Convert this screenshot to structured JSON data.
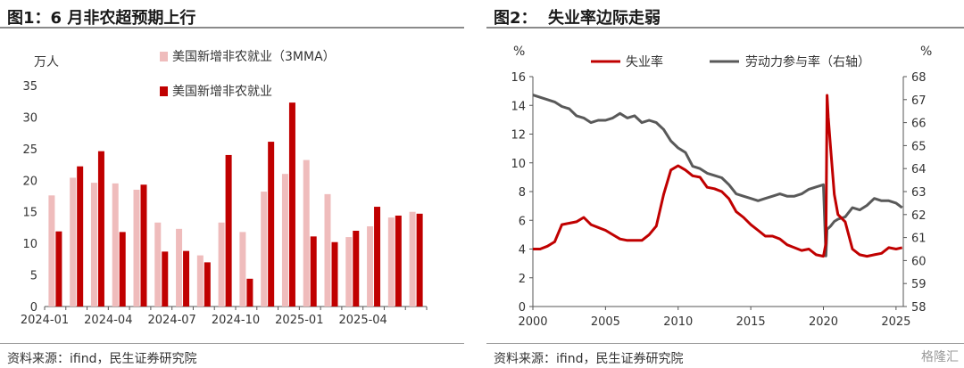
{
  "left": {
    "title": "图1：6 月非农超预期上行",
    "source": "资料来源：ifind，民生证券研究院",
    "unit": "万人",
    "legend": [
      "美国新增非农就业（3MMA）",
      "美国新增非农就业"
    ],
    "colors": {
      "mma": "#efbcbc",
      "payrolls": "#c00000"
    }
  },
  "right": {
    "title": "图2：  失业率边际走弱",
    "source": "资料来源：ifind，民生证券研究院",
    "unit_left": "%",
    "unit_right": "%",
    "legend": [
      "失业率",
      "劳动力参与率（右轴）"
    ],
    "colors": {
      "unemployment": "#c00000",
      "participation": "#595959"
    }
  },
  "watermark": "格隆汇",
  "chart_data": [
    {
      "type": "bar",
      "title": "图1：6 月非农超预期上行",
      "ylabel": "万人",
      "ylim": [
        0,
        35
      ],
      "yticks": [
        0,
        5,
        10,
        15,
        20,
        25,
        30,
        35
      ],
      "categories": [
        "2024-01",
        "2024-02",
        "2024-03",
        "2024-04",
        "2024-05",
        "2024-06",
        "2024-07",
        "2024-08",
        "2024-09",
        "2024-10",
        "2024-11",
        "2024-12",
        "2025-01",
        "2025-02",
        "2025-03",
        "2025-04",
        "2025-05",
        "2025-06"
      ],
      "xticklabels": [
        "2024-01",
        "2024-04",
        "2024-07",
        "2024-10",
        "2025-01",
        "2025-04"
      ],
      "series": [
        {
          "name": "美国新增非农就业（3MMA）",
          "values": [
            17.6,
            20.4,
            19.6,
            19.5,
            18.5,
            13.3,
            12.3,
            8.1,
            13.3,
            11.8,
            18.2,
            21.0,
            23.2,
            17.8,
            11.0,
            12.7,
            14.1,
            15.0
          ]
        },
        {
          "name": "美国新增非农就业",
          "values": [
            11.9,
            22.2,
            24.6,
            11.8,
            19.3,
            8.7,
            8.8,
            7.0,
            24.0,
            4.4,
            26.1,
            32.3,
            11.1,
            10.2,
            12.0,
            15.8,
            14.4,
            14.7
          ]
        }
      ],
      "legend": "top"
    },
    {
      "type": "line",
      "title": "图2：  失业率边际走弱",
      "x": [
        2000.0,
        2000.5,
        2001.0,
        2001.5,
        2002.0,
        2002.5,
        2003.0,
        2003.5,
        2004.0,
        2004.5,
        2005.0,
        2005.5,
        2006.0,
        2006.5,
        2007.0,
        2007.5,
        2008.0,
        2008.5,
        2009.0,
        2009.5,
        2010.0,
        2010.5,
        2011.0,
        2011.5,
        2012.0,
        2012.5,
        2013.0,
        2013.5,
        2014.0,
        2014.5,
        2015.0,
        2015.5,
        2016.0,
        2016.5,
        2017.0,
        2017.5,
        2018.0,
        2018.5,
        2019.0,
        2019.5,
        2020.0,
        2020.17,
        2020.25,
        2020.33,
        2020.5,
        2020.75,
        2021.0,
        2021.5,
        2022.0,
        2022.5,
        2023.0,
        2023.5,
        2024.0,
        2024.5,
        2025.0,
        2025.42
      ],
      "xlim": [
        2000,
        2025.5
      ],
      "xticks": [
        2000,
        2005,
        2010,
        2015,
        2020,
        2025
      ],
      "series": [
        {
          "name": "失业率",
          "axis": "left",
          "values": [
            4.0,
            4.0,
            4.2,
            4.5,
            5.7,
            5.8,
            5.9,
            6.2,
            5.7,
            5.5,
            5.3,
            5.0,
            4.7,
            4.6,
            4.6,
            4.6,
            5.0,
            5.6,
            7.8,
            9.5,
            9.8,
            9.5,
            9.1,
            9.0,
            8.3,
            8.2,
            8.0,
            7.5,
            6.6,
            6.2,
            5.7,
            5.3,
            4.9,
            4.9,
            4.7,
            4.3,
            4.1,
            3.9,
            4.0,
            3.6,
            3.5,
            4.4,
            14.7,
            13.2,
            11.0,
            7.8,
            6.4,
            5.9,
            4.0,
            3.6,
            3.5,
            3.6,
            3.7,
            4.1,
            4.0,
            4.1
          ]
        },
        {
          "name": "劳动力参与率（右轴）",
          "axis": "right",
          "values": [
            67.2,
            67.1,
            67.0,
            66.9,
            66.7,
            66.6,
            66.3,
            66.2,
            66.0,
            66.1,
            66.1,
            66.2,
            66.4,
            66.2,
            66.3,
            66.0,
            66.1,
            66.0,
            65.7,
            65.2,
            64.9,
            64.7,
            64.1,
            64.0,
            63.8,
            63.7,
            63.6,
            63.3,
            62.9,
            62.8,
            62.7,
            62.6,
            62.7,
            62.8,
            62.9,
            62.8,
            62.8,
            62.9,
            63.1,
            63.2,
            63.3,
            60.2,
            61.4,
            61.4,
            61.5,
            61.7,
            61.8,
            61.9,
            62.3,
            62.2,
            62.4,
            62.7,
            62.6,
            62.6,
            62.5,
            62.3
          ]
        }
      ],
      "ylim_left": [
        0,
        16
      ],
      "yticks_left": [
        0,
        2,
        4,
        6,
        8,
        10,
        12,
        14,
        16
      ],
      "ylim_right": [
        58,
        68
      ],
      "yticks_right": [
        58,
        59,
        60,
        61,
        62,
        63,
        64,
        65,
        66,
        67,
        68
      ],
      "ylabel_left": "%",
      "ylabel_right": "%",
      "legend": "top"
    }
  ]
}
